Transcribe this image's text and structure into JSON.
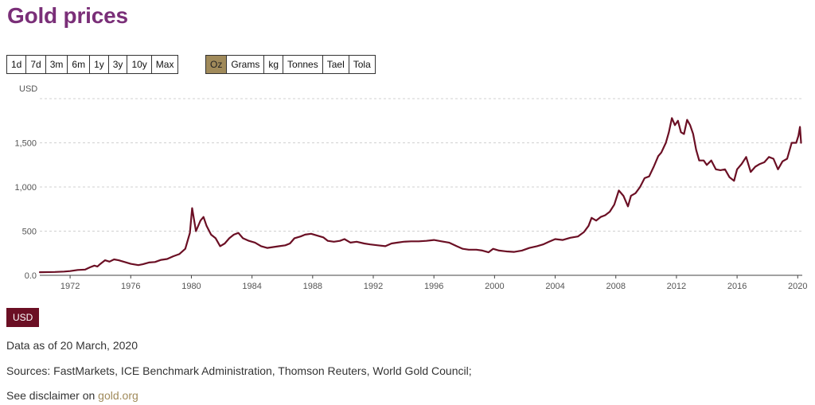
{
  "header": {
    "title": "Gold prices"
  },
  "period_buttons": [
    "1d",
    "7d",
    "3m",
    "6m",
    "1y",
    "3y",
    "10y",
    "Max"
  ],
  "unit_buttons": [
    "Oz",
    "Grams",
    "kg",
    "Tonnes",
    "Tael",
    "Tola"
  ],
  "active_unit": "Oz",
  "currency_badge": "USD",
  "footer": {
    "data_as_of": "Data as of 20 March, 2020",
    "sources": "Sources: FastMarkets, ICE Benchmark Administration, Thomson Reuters, World Gold Council;",
    "disclaimer_prefix": "See disclaimer on ",
    "disclaimer_link": "gold.org"
  },
  "colors": {
    "title": "#7a2f78",
    "line": "#6b0f24",
    "active_button": "#a08a5a",
    "link": "#a08a5a"
  },
  "chart_data": {
    "type": "line",
    "title": "",
    "ylabel": "USD",
    "xlabel": "",
    "xlim": [
      1970,
      2020.3
    ],
    "ylim": [
      0,
      2000
    ],
    "yticks": [
      0,
      500,
      1000,
      1500
    ],
    "ytick_labels": [
      "0.0",
      "500",
      "1,000",
      "1,500"
    ],
    "xticks": [
      1972,
      1976,
      1980,
      1984,
      1988,
      1992,
      1996,
      2000,
      2004,
      2008,
      2012,
      2016,
      2020
    ],
    "xtick_labels": [
      "1972",
      "1976",
      "1980",
      "1984",
      "1988",
      "1992",
      "1996",
      "2000",
      "2004",
      "2008",
      "2012",
      "2016",
      "2020"
    ],
    "grid": true,
    "series": [
      {
        "name": "USD",
        "x": [
          1970.0,
          1971.0,
          1971.6,
          1972.0,
          1972.5,
          1973.0,
          1973.3,
          1973.6,
          1973.8,
          1974.0,
          1974.3,
          1974.6,
          1974.9,
          1975.2,
          1975.6,
          1976.0,
          1976.5,
          1976.8,
          1977.2,
          1977.6,
          1978.0,
          1978.4,
          1978.8,
          1979.2,
          1979.6,
          1979.9,
          1980.05,
          1980.3,
          1980.6,
          1980.8,
          1981.0,
          1981.3,
          1981.6,
          1981.9,
          1982.2,
          1982.5,
          1982.8,
          1983.1,
          1983.4,
          1983.8,
          1984.2,
          1984.6,
          1985.0,
          1985.4,
          1985.8,
          1986.2,
          1986.5,
          1986.8,
          1987.2,
          1987.5,
          1987.9,
          1988.3,
          1988.7,
          1989.0,
          1989.4,
          1989.8,
          1990.1,
          1990.5,
          1990.9,
          1991.4,
          1991.8,
          1992.3,
          1992.8,
          1993.2,
          1993.6,
          1994.0,
          1994.5,
          1995.0,
          1995.5,
          1996.0,
          1996.5,
          1997.0,
          1997.5,
          1997.9,
          1998.3,
          1998.8,
          1999.2,
          1999.6,
          1999.9,
          2000.3,
          2000.8,
          2001.3,
          2001.8,
          2002.3,
          2002.8,
          2003.2,
          2003.6,
          2004.0,
          2004.5,
          2005.0,
          2005.5,
          2005.9,
          2006.2,
          2006.4,
          2006.7,
          2007.0,
          2007.3,
          2007.6,
          2007.9,
          2008.2,
          2008.5,
          2008.8,
          2009.0,
          2009.3,
          2009.6,
          2009.9,
          2010.2,
          2010.5,
          2010.8,
          2011.0,
          2011.3,
          2011.5,
          2011.7,
          2011.9,
          2012.1,
          2012.3,
          2012.5,
          2012.7,
          2012.9,
          2013.1,
          2013.3,
          2013.5,
          2013.8,
          2014.0,
          2014.3,
          2014.6,
          2014.9,
          2015.2,
          2015.5,
          2015.8,
          2016.0,
          2016.3,
          2016.6,
          2016.9,
          2017.2,
          2017.5,
          2017.8,
          2018.1,
          2018.4,
          2018.7,
          2019.0,
          2019.3,
          2019.6,
          2019.9,
          2020.05,
          2020.15,
          2020.22
        ],
        "y": [
          35,
          38,
          42,
          48,
          60,
          65,
          90,
          110,
          100,
          130,
          170,
          155,
          180,
          170,
          150,
          130,
          115,
          125,
          145,
          150,
          175,
          185,
          215,
          240,
          300,
          480,
          760,
          500,
          620,
          660,
          560,
          460,
          420,
          330,
          360,
          420,
          460,
          480,
          420,
          390,
          370,
          330,
          310,
          320,
          330,
          340,
          360,
          420,
          440,
          460,
          470,
          450,
          430,
          390,
          380,
          390,
          410,
          370,
          380,
          360,
          350,
          340,
          330,
          360,
          370,
          380,
          385,
          385,
          390,
          400,
          385,
          370,
          330,
          300,
          290,
          290,
          280,
          260,
          300,
          280,
          270,
          265,
          280,
          310,
          330,
          350,
          380,
          410,
          400,
          425,
          440,
          490,
          560,
          650,
          620,
          660,
          680,
          720,
          800,
          960,
          900,
          780,
          900,
          930,
          1000,
          1100,
          1120,
          1230,
          1350,
          1390,
          1500,
          1620,
          1780,
          1700,
          1750,
          1620,
          1600,
          1760,
          1700,
          1600,
          1420,
          1300,
          1300,
          1250,
          1300,
          1200,
          1190,
          1200,
          1110,
          1070,
          1200,
          1260,
          1340,
          1170,
          1230,
          1260,
          1280,
          1340,
          1320,
          1200,
          1290,
          1320,
          1500,
          1500,
          1580,
          1680,
          1500
        ]
      }
    ]
  }
}
